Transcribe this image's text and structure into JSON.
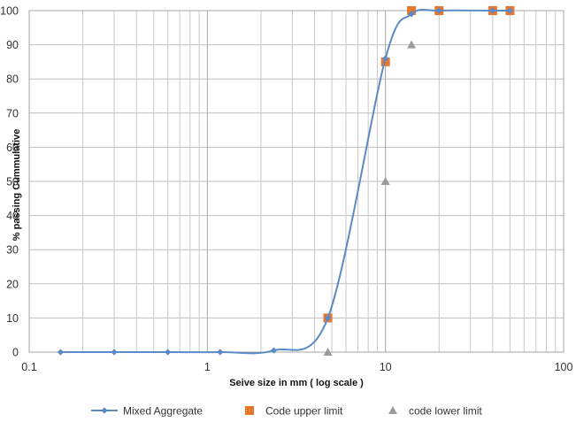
{
  "chart_data": {
    "type": "scatter",
    "title": "",
    "xlabel": "Seive size in mm ( log scale )",
    "ylabel": "% passing Cummulative",
    "x_scale": "log",
    "xlim": [
      0.1,
      100
    ],
    "ylim": [
      0,
      100
    ],
    "x_ticks": [
      "0.1",
      "1",
      "10",
      "100"
    ],
    "y_ticks": [
      "0",
      "10",
      "20",
      "30",
      "40",
      "50",
      "60",
      "70",
      "80",
      "90",
      "100"
    ],
    "grid": true,
    "legend_position": "bottom",
    "series": [
      {
        "name": "Mixed Aggregate",
        "style": "smooth-line-with-markers",
        "marker": "diamond",
        "color": "#5b8ac6",
        "x": [
          0.15,
          0.3,
          0.6,
          1.18,
          2.36,
          4.75,
          10,
          14,
          20,
          40,
          50
        ],
        "y": [
          0,
          0,
          0,
          0,
          0.5,
          10,
          86,
          99,
          100,
          100,
          100
        ]
      },
      {
        "name": "Code upper limit",
        "style": "markers",
        "marker": "square",
        "color": "#e8772e",
        "x": [
          4.75,
          10,
          14,
          20,
          40,
          50
        ],
        "y": [
          10,
          85,
          100,
          100,
          100,
          100
        ]
      },
      {
        "name": "code lower limit",
        "style": "markers",
        "marker": "triangle",
        "color": "#9b9b9b",
        "x": [
          4.75,
          10,
          14,
          20,
          40,
          50
        ],
        "y": [
          0,
          50,
          90,
          100,
          100,
          100
        ]
      }
    ]
  }
}
